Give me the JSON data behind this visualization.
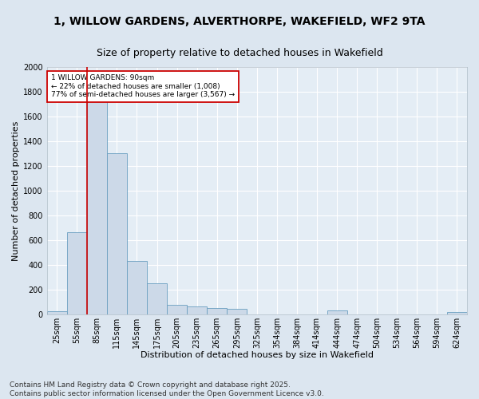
{
  "title_line1": "1, WILLOW GARDENS, ALVERTHORPE, WAKEFIELD, WF2 9TA",
  "title_line2": "Size of property relative to detached houses in Wakefield",
  "xlabel": "Distribution of detached houses by size in Wakefield",
  "ylabel": "Number of detached properties",
  "categories": [
    "25sqm",
    "55sqm",
    "85sqm",
    "115sqm",
    "145sqm",
    "175sqm",
    "205sqm",
    "235sqm",
    "265sqm",
    "295sqm",
    "325sqm",
    "354sqm",
    "384sqm",
    "414sqm",
    "444sqm",
    "474sqm",
    "504sqm",
    "534sqm",
    "564sqm",
    "594sqm",
    "624sqm"
  ],
  "values": [
    25,
    660,
    1870,
    1300,
    430,
    250,
    75,
    60,
    50,
    40,
    0,
    0,
    0,
    0,
    30,
    0,
    0,
    0,
    0,
    0,
    15
  ],
  "bar_color": "#ccd9e8",
  "bar_edge_color": "#6a9fc0",
  "vline_color": "#cc0000",
  "annotation_text": "1 WILLOW GARDENS: 90sqm\n← 22% of detached houses are smaller (1,008)\n77% of semi-detached houses are larger (3,567) →",
  "annotation_box_color": "#cc0000",
  "ylim": [
    0,
    2000
  ],
  "yticks": [
    0,
    200,
    400,
    600,
    800,
    1000,
    1200,
    1400,
    1600,
    1800,
    2000
  ],
  "bg_color": "#dce6f0",
  "plot_bg_color": "#e4edf5",
  "footer_text": "Contains HM Land Registry data © Crown copyright and database right 2025.\nContains public sector information licensed under the Open Government Licence v3.0.",
  "title_fontsize": 10,
  "subtitle_fontsize": 9,
  "axis_label_fontsize": 8,
  "tick_fontsize": 7,
  "footer_fontsize": 6.5,
  "annot_fontsize": 6.5
}
